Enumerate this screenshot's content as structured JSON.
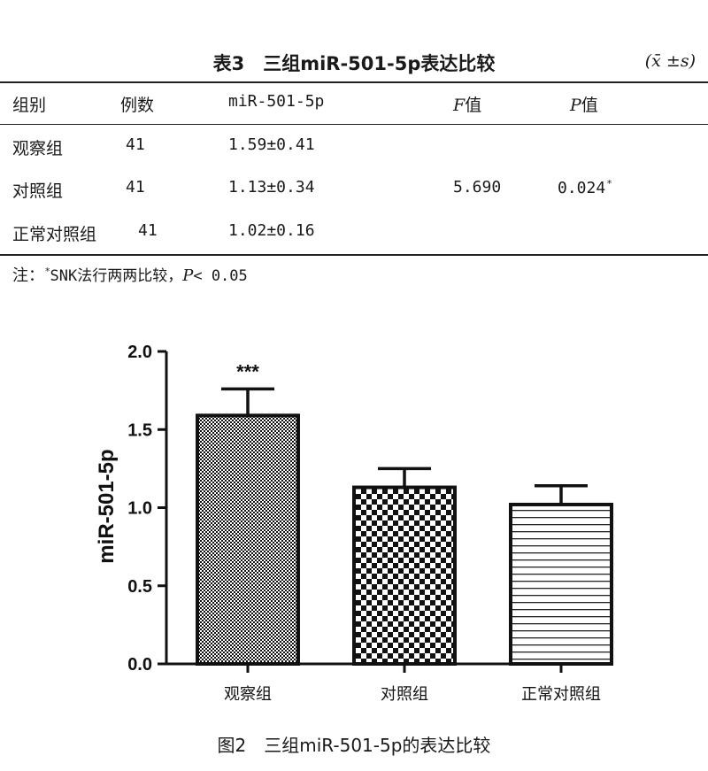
{
  "table": {
    "caption": "表3　三组miR-501-5p表达比较",
    "unit": "(x̄ ±s)",
    "headers": {
      "group": "组别",
      "n": "例数",
      "mir": "miR-501-5p",
      "f_letter": "F",
      "f_suffix": "值",
      "p_letter": "P",
      "p_suffix": "值"
    },
    "rows": [
      {
        "group": "观察组",
        "n": "41",
        "mir": "1.59±0.41"
      },
      {
        "group": "对照组",
        "n": "41",
        "mir": "1.13±0.34"
      },
      {
        "group": "正常对照组",
        "n": "41",
        "mir": "1.02±0.16"
      }
    ],
    "f_value": "5.690",
    "p_value": "0.024",
    "p_star": "*",
    "note": {
      "prefix": "注：",
      "star": "*",
      "text": "SNK法行两两比较，",
      "p_letter": "P",
      "p_text": "< 0.05"
    }
  },
  "chart_data": {
    "type": "bar",
    "categories": [
      "观察组",
      "对照组",
      "正常对照组"
    ],
    "values": [
      1.59,
      1.13,
      1.02
    ],
    "errors": [
      0.17,
      0.12,
      0.12
    ],
    "annotations": [
      "***",
      "",
      ""
    ],
    "ylabel": "miR-501-5p",
    "ylim": [
      0,
      2.0
    ],
    "yticks": [
      "0.0",
      "0.5",
      "1.0",
      "1.5",
      "2.0"
    ],
    "patterns": [
      "fine-dots",
      "checkerboard",
      "horizontal-lines"
    ],
    "grid": false,
    "legend": "none"
  },
  "figure": {
    "caption": "图2　三组miR-501-5p的表达比较"
  }
}
